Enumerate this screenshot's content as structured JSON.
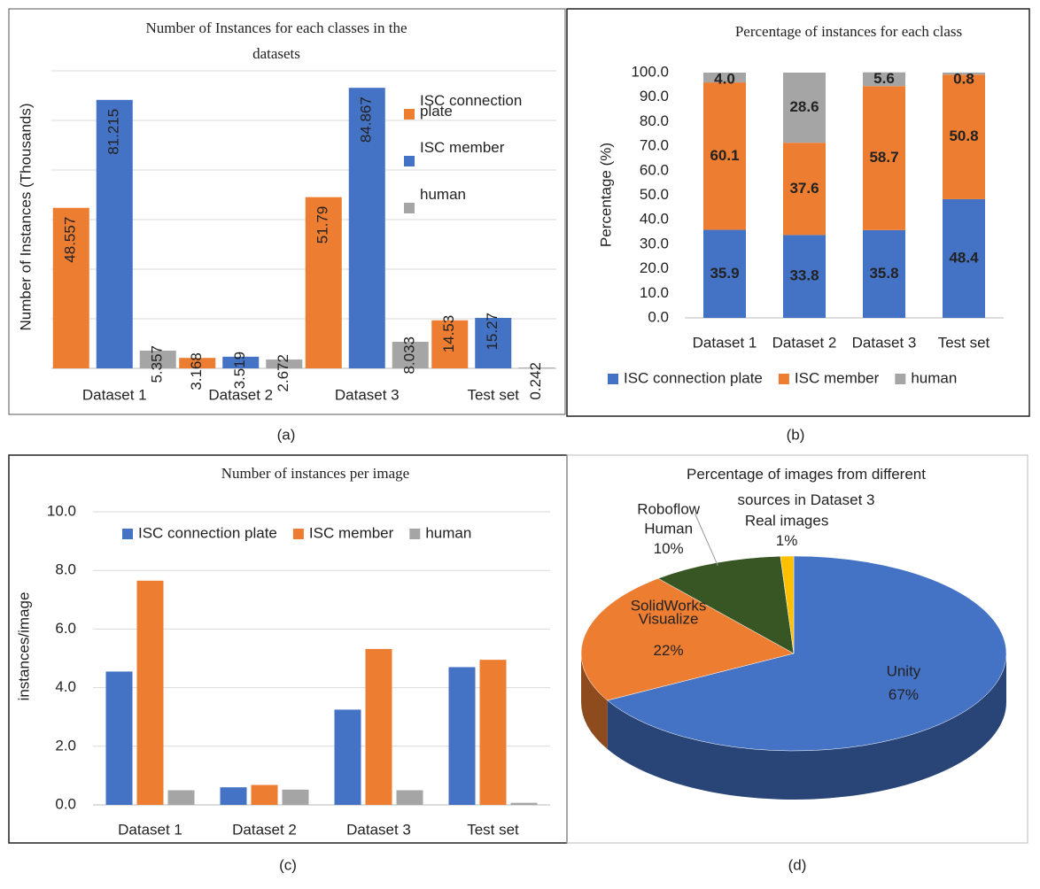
{
  "chart_data": [
    {
      "type": "bar",
      "title": "Number of Instances for each classes in the datasets",
      "y_label": "Number of Instances (Thousands)",
      "caption": "(a)",
      "categories": [
        "Dataset 1",
        "Dataset 2",
        "Dataset 3",
        "Test set"
      ],
      "series": [
        {
          "name": "ISC connection plate",
          "color": "#ED7D31",
          "values": [
            48.557,
            3.168,
            51.79,
            14.53
          ]
        },
        {
          "name": "ISC member",
          "color": "#4472C4",
          "values": [
            81.215,
            3.519,
            84.867,
            15.27
          ]
        },
        {
          "name": "human",
          "color": "#A5A5A5",
          "values": [
            5.357,
            2.672,
            8.033,
            0.242
          ]
        }
      ],
      "ylim": [
        0,
        90
      ],
      "yticks": [
        0,
        15,
        30,
        45,
        60,
        75,
        90
      ],
      "ytick_labels": false,
      "grid": true,
      "legend": "right"
    },
    {
      "type": "stacked_bar",
      "title": "Percentage of instances for each class",
      "y_label": "Percentage (%)",
      "caption": "(b)",
      "categories": [
        "Dataset 1",
        "Dataset 2",
        "Dataset 3",
        "Test set"
      ],
      "series": [
        {
          "name": "ISC connection plate",
          "color": "#4472C4",
          "values": [
            35.9,
            33.8,
            35.8,
            48.4
          ]
        },
        {
          "name": "ISC member",
          "color": "#ED7D31",
          "values": [
            60.1,
            37.6,
            58.7,
            50.8
          ]
        },
        {
          "name": "human",
          "color": "#A5A5A5",
          "values": [
            4.0,
            28.6,
            5.6,
            0.8
          ],
          "value_labels": [
            "4.0",
            "28.6",
            "5.6",
            "0.8"
          ]
        }
      ],
      "ylim": [
        0,
        100
      ],
      "yticks": [
        {
          "value": 0,
          "label": "0.0"
        },
        {
          "value": 10,
          "label": "10.0"
        },
        {
          "value": 20,
          "label": "20.0"
        },
        {
          "value": 30,
          "label": "30.0"
        },
        {
          "value": 40,
          "label": "40.0"
        },
        {
          "value": 50,
          "label": "50.0"
        },
        {
          "value": 60,
          "label": "60.0"
        },
        {
          "value": 70,
          "label": "70.0"
        },
        {
          "value": 80,
          "label": "80.0"
        },
        {
          "value": 90,
          "label": "90.0"
        },
        {
          "value": 100,
          "label": "100.0"
        }
      ],
      "grid": false,
      "legend": "bottom"
    },
    {
      "type": "bar",
      "title": "Number of instances per image",
      "y_label": "instances/image",
      "caption": "(c)",
      "categories": [
        "Dataset 1",
        "Dataset 2",
        "Dataset 3",
        "Test set"
      ],
      "series": [
        {
          "name": "ISC connection plate",
          "color": "#4472C4",
          "values": [
            4.55,
            0.6,
            3.25,
            4.7
          ]
        },
        {
          "name": "ISC member",
          "color": "#ED7D31",
          "values": [
            7.65,
            0.68,
            5.32,
            4.95
          ]
        },
        {
          "name": "human",
          "color": "#A5A5A5",
          "values": [
            0.5,
            0.52,
            0.5,
            0.07
          ]
        }
      ],
      "ylim": [
        0,
        10
      ],
      "yticks": [
        {
          "value": 0,
          "label": "0.0"
        },
        {
          "value": 2,
          "label": "2.0"
        },
        {
          "value": 4,
          "label": "4.0"
        },
        {
          "value": 6,
          "label": "6.0"
        },
        {
          "value": 8,
          "label": "8.0"
        },
        {
          "value": 10,
          "label": "10.0"
        }
      ],
      "ytick_labels": true,
      "grid": true,
      "legend": "top"
    },
    {
      "type": "pie",
      "title": "Percentage of images from different sources in Dataset 3",
      "caption": "(d)",
      "categories": [
        "Unity",
        "SolidWorks Visualize",
        "Roboflow Human",
        "Real images"
      ],
      "values": [
        67,
        22,
        10,
        1
      ],
      "value_labels": [
        "67%",
        "22%",
        "10%",
        "1%"
      ],
      "colors": [
        "#4472C4",
        "#ED7D31",
        "#375623",
        "#FFC000"
      ],
      "style": "3d"
    }
  ]
}
